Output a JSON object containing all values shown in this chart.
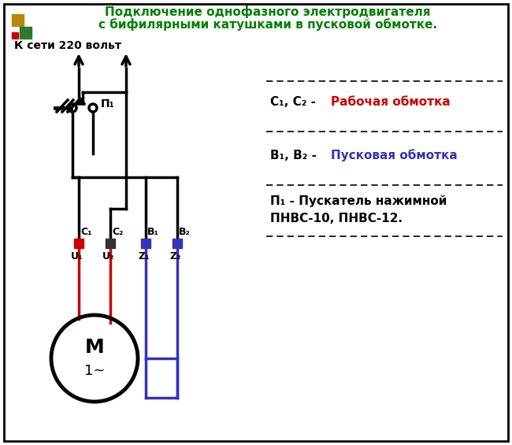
{
  "title_line1": "Подключение однофазного электродвигателя",
  "title_line2": "с бифилярными катушками в пусковой обмотке.",
  "title_color": "#008000",
  "bg_color": "#ffffff",
  "border_color": "#000000",
  "supply_label": "К сети 220 вольт",
  "legend_c_prefix": "С₁, С₂ - ",
  "legend_c_suffix": "Рабочая обмотка",
  "legend_c_color": "#cc0000",
  "legend_b_prefix": "В₁, В₂ - ",
  "legend_b_suffix": "Пусковая обмотка",
  "legend_b_color": "#3333bb",
  "legend_p1": "П₁ - Пускатель нажимной",
  "legend_p2": "ПНВС-10, ПНВС-12.",
  "motor_label": "М",
  "motor_sub": "1~",
  "red_color": "#cc0000",
  "blue_color": "#3333bb",
  "black_color": "#000000",
  "sq_red": "#cc0000",
  "sq_black": "#333333",
  "sq_blue": "#3333bb",
  "sq_gold": "#b8860b",
  "sq_green": "#2d7a2d",
  "sq_smallred": "#cc0000",
  "lw_wire": 2.5,
  "lw_border": 2.0
}
